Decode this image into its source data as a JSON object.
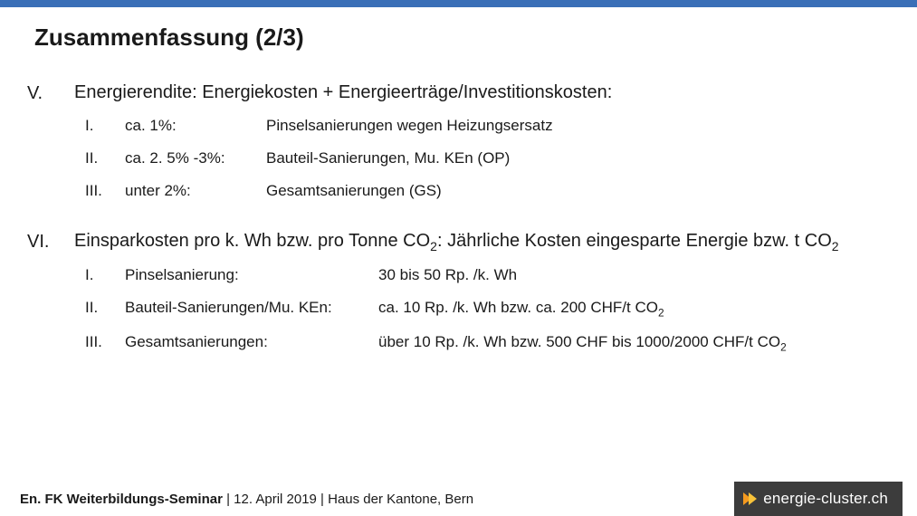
{
  "title": "Zusammenfassung (2/3)",
  "colors": {
    "bar": "#3a6fb7",
    "text": "#1a1a1a",
    "footer_bg": "#3c3c3c",
    "chev1": "#f59a1f",
    "chev2": "#f8c23a"
  },
  "sectionV": {
    "numeral": "V.",
    "heading": "Energierendite: Energiekosten + Energieerträge/Investitionskosten:",
    "rows": [
      {
        "rn": "I.",
        "c1": "ca. 1%:",
        "c2": "Pinselsanierungen wegen Heizungsersatz"
      },
      {
        "rn": "II.",
        "c1": "ca. 2. 5% -3%:",
        "c2": "Bauteil-Sanierungen, Mu. KEn (OP)"
      },
      {
        "rn": "III.",
        "c1": "unter 2%:",
        "c2": "Gesamtsanierungen (GS)"
      }
    ]
  },
  "sectionVI": {
    "numeral": "VI.",
    "heading_html": "Einsparkosten pro k. Wh bzw. pro Tonne CO<sub>2</sub>: Jährliche Kosten eingesparte Energie bzw. t CO<sub>2</sub>",
    "rows": [
      {
        "rn": "I.",
        "c1": "Pinselsanierung:",
        "c2": "30 bis 50 Rp. /k. Wh"
      },
      {
        "rn": "II.",
        "c1": "Bauteil-Sanierungen/Mu. KEn:",
        "c2_html": "ca. 10 Rp. /k. Wh bzw. ca. 200 CHF/t CO<sub>2</sub>"
      },
      {
        "rn": "III.",
        "c1": "Gesamtsanierungen:",
        "c2_html": "über 10 Rp. /k. Wh bzw. 500 CHF bis 1000/2000 CHF/t CO<sub>2</sub>"
      }
    ]
  },
  "footer": {
    "text_html": "<b>En. FK Weiterbildungs-Seminar</b> | 12. April 2019 | Haus der Kantone, Bern",
    "logo_text": "energie-cluster.ch"
  }
}
